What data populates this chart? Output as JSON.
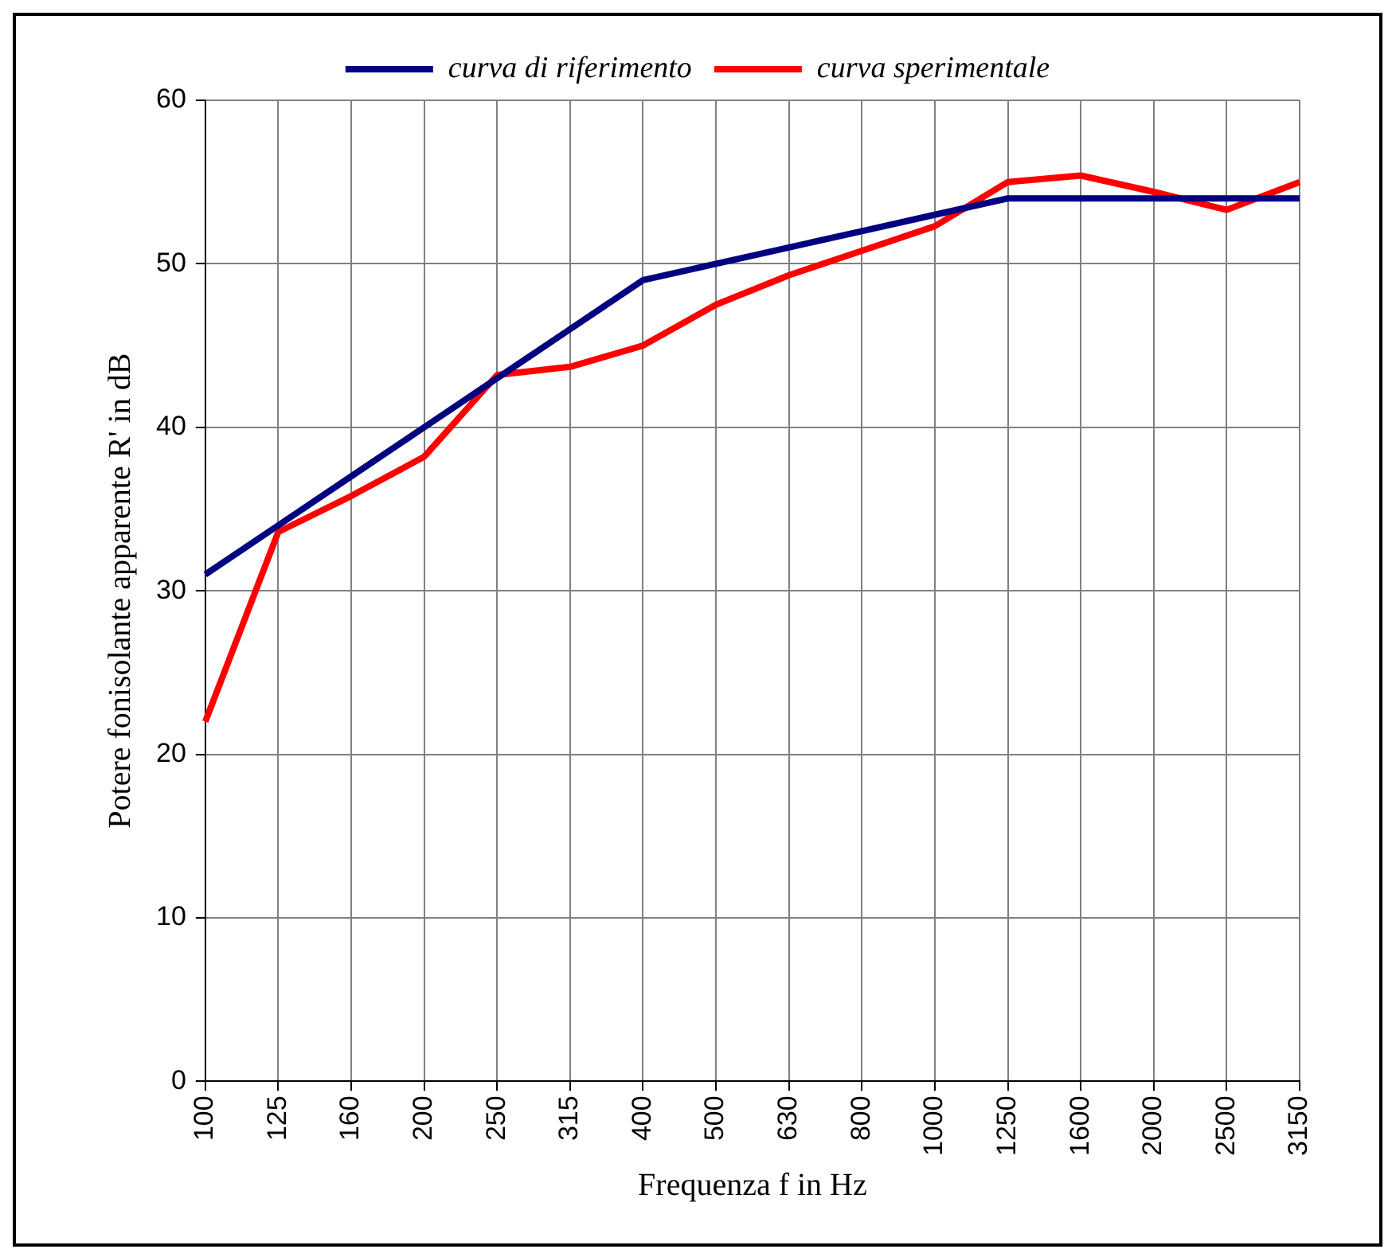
{
  "chart_data": {
    "type": "line",
    "xlabel": "Frequenza f in Hz",
    "ylabel": "Potere fonisolante apparente R' in dB",
    "categories": [
      "100",
      "125",
      "160",
      "200",
      "250",
      "315",
      "400",
      "500",
      "630",
      "800",
      "1000",
      "1250",
      "1600",
      "2000",
      "2500",
      "3150"
    ],
    "series": [
      {
        "name": "curva di riferimento",
        "color": "#000080",
        "values": [
          31,
          34,
          37,
          40,
          43,
          46,
          49,
          50,
          51,
          52,
          53,
          54,
          54,
          54,
          54,
          54
        ]
      },
      {
        "name": "curva sperimentale",
        "color": "#ff0000",
        "values": [
          22,
          33.6,
          35.8,
          38.2,
          43.2,
          43.7,
          45,
          47.5,
          49.3,
          50.8,
          52.3,
          55,
          55.4,
          54.4,
          53.3,
          55
        ]
      }
    ],
    "ylim": [
      0,
      60
    ],
    "yticks": [
      0,
      10,
      20,
      30,
      40,
      50,
      60
    ],
    "grid": true,
    "legend": "top",
    "marker": "none",
    "line_style": "solid"
  }
}
